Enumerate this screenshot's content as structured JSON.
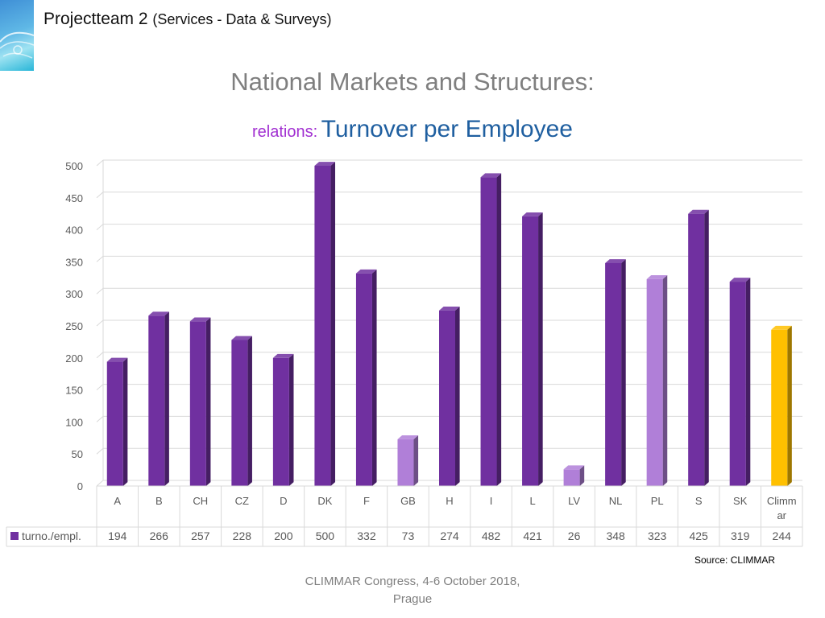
{
  "header": {
    "project_title": "Projectteam 2",
    "project_subtitle": "(Services - Data & Surveys)"
  },
  "slide": {
    "title": "National Markets and Structures:",
    "subtitle_prefix": "relations:",
    "subtitle_main": "Turnover per Employee",
    "source": "Source: CLIMMAR",
    "footer_line1": "CLIMMAR Congress, 4-6 October 2018,",
    "footer_line2": "Prague"
  },
  "colors": {
    "bar_default": "#7030a0",
    "bar_light": "#b07fd8",
    "bar_highlight": "#ffc000",
    "grid": "#d9d9d9",
    "axis_text": "#595959"
  },
  "chart_data": {
    "type": "bar",
    "style": "3d-column-with-data-table",
    "categories": [
      "A",
      "B",
      "CH",
      "CZ",
      "D",
      "DK",
      "F",
      "GB",
      "H",
      "I",
      "L",
      "LV",
      "NL",
      "PL",
      "S",
      "SK",
      "Climmar"
    ],
    "category_display": [
      "A",
      "B",
      "CH",
      "CZ",
      "D",
      "DK",
      "F",
      "GB",
      "H",
      "I",
      "L",
      "LV",
      "NL",
      "PL",
      "S",
      "SK",
      "Climm|ar"
    ],
    "series": [
      {
        "name": "turno./empl.",
        "values": [
          194,
          266,
          257,
          228,
          200,
          500,
          332,
          73,
          274,
          482,
          421,
          26,
          348,
          323,
          425,
          319,
          244
        ],
        "value_labels": [
          "194",
          "266",
          "257",
          "228",
          "200",
          "500",
          "332",
          "73",
          "274",
          "482",
          "421",
          "26",
          "348",
          "323",
          "425",
          "319",
          "244"
        ]
      }
    ],
    "bar_color_keys": [
      "bar_default",
      "bar_default",
      "bar_default",
      "bar_default",
      "bar_default",
      "bar_default",
      "bar_default",
      "bar_light",
      "bar_default",
      "bar_default",
      "bar_default",
      "bar_light",
      "bar_default",
      "bar_light",
      "bar_default",
      "bar_default",
      "bar_highlight"
    ],
    "ylim": [
      0,
      500
    ],
    "yticks": [
      0,
      50,
      100,
      150,
      200,
      250,
      300,
      350,
      400,
      450,
      500
    ],
    "grid": true,
    "legend": "data-table"
  }
}
